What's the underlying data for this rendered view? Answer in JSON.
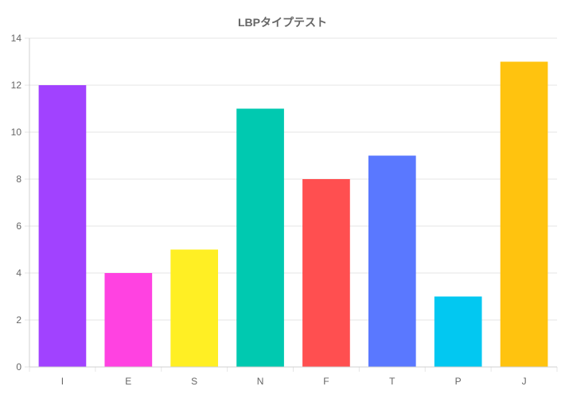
{
  "chart_data": {
    "type": "bar",
    "title": "LBPタイプテスト",
    "xlabel": "",
    "ylabel": "",
    "categories": [
      "I",
      "E",
      "S",
      "N",
      "F",
      "T",
      "P",
      "J"
    ],
    "values": [
      12,
      4,
      5,
      11,
      8,
      9,
      3,
      13
    ],
    "colors": [
      "#a142ff",
      "#ff42e1",
      "#ffef24",
      "#00c9b0",
      "#ff4f50",
      "#5a78ff",
      "#02c8f1",
      "#ffc30f"
    ],
    "ylim": [
      0,
      14
    ],
    "yticks": [
      0,
      2,
      4,
      6,
      8,
      10,
      12,
      14
    ],
    "grid": true,
    "legend": "none"
  }
}
